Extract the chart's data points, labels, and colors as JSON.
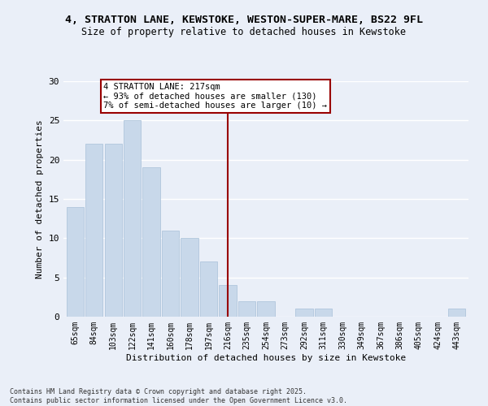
{
  "title_line1": "4, STRATTON LANE, KEWSTOKE, WESTON-SUPER-MARE, BS22 9FL",
  "title_line2": "Size of property relative to detached houses in Kewstoke",
  "xlabel": "Distribution of detached houses by size in Kewstoke",
  "ylabel": "Number of detached properties",
  "categories": [
    "65sqm",
    "84sqm",
    "103sqm",
    "122sqm",
    "141sqm",
    "160sqm",
    "178sqm",
    "197sqm",
    "216sqm",
    "235sqm",
    "254sqm",
    "273sqm",
    "292sqm",
    "311sqm",
    "330sqm",
    "349sqm",
    "367sqm",
    "386sqm",
    "405sqm",
    "424sqm",
    "443sqm"
  ],
  "values": [
    14,
    22,
    22,
    25,
    19,
    11,
    10,
    7,
    4,
    2,
    2,
    0,
    1,
    1,
    0,
    0,
    0,
    0,
    0,
    0,
    1
  ],
  "bar_color": "#c8d8ea",
  "bar_edge_color": "#a8c0d8",
  "vline_color": "#990000",
  "vline_x_index": 8,
  "annotation_text": "4 STRATTON LANE: 217sqm\n← 93% of detached houses are smaller (130)\n7% of semi-detached houses are larger (10) →",
  "annotation_box_color": "#990000",
  "annotation_bg": "#ffffff",
  "ylim": [
    0,
    30
  ],
  "yticks": [
    0,
    5,
    10,
    15,
    20,
    25,
    30
  ],
  "footnote": "Contains HM Land Registry data © Crown copyright and database right 2025.\nContains public sector information licensed under the Open Government Licence v3.0.",
  "bg_color": "#eaeff8",
  "plot_bg_color": "#eaeff8",
  "grid_color": "#ffffff",
  "title_fontsize": 9.5,
  "subtitle_fontsize": 8.5,
  "tick_fontsize": 7,
  "label_fontsize": 8,
  "footnote_fontsize": 6,
  "annotation_fontsize": 7.5
}
